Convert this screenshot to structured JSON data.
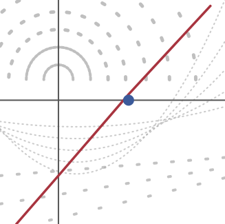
{
  "chart_data": {
    "type": "line",
    "title": "",
    "xlabel": "",
    "ylabel": "",
    "xlim": [
      -1.0,
      2.85
    ],
    "ylim": [
      -2.1,
      1.7
    ],
    "grid": false,
    "axes_origin": [
      0,
      0
    ],
    "series": [
      {
        "kind": "line",
        "color": "#a8343f",
        "x": [
          -0.72,
          0.0,
          1.2,
          2.6
        ],
        "y": [
          -2.1,
          -1.28,
          0.1,
          1.6
        ]
      },
      {
        "kind": "marker",
        "color": "#3b5a9a",
        "x": [
          1.2
        ],
        "y": [
          0.0
        ]
      }
    ],
    "background_pattern": {
      "description_color": "#a9a9a9",
      "arcs_center": [
        0.0,
        0.35
      ],
      "arc_radii": [
        0.25,
        0.55,
        0.85,
        1.15,
        1.5,
        1.9,
        2.35
      ],
      "hyperbola_family": true
    }
  }
}
